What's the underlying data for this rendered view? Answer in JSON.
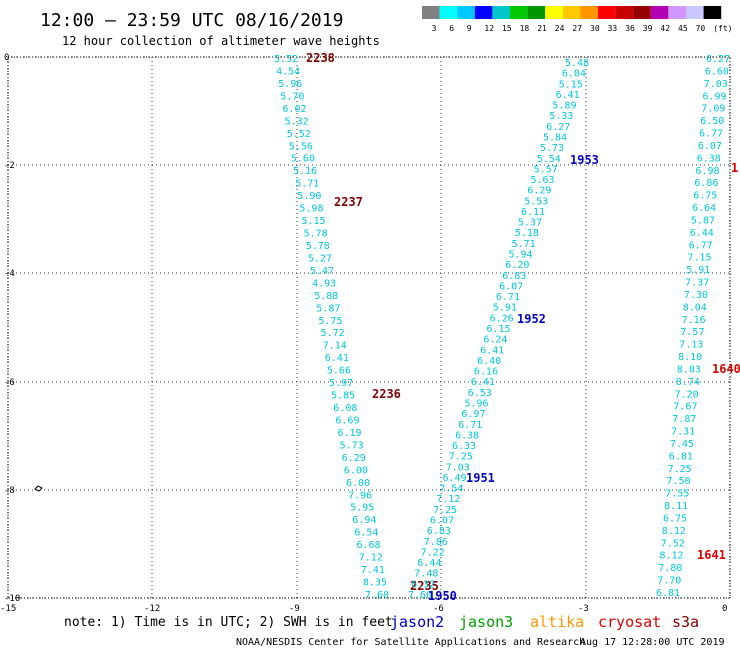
{
  "header": {
    "title": "12:00 – 23:59 UTC 08/16/2019",
    "subtitle": "12 hour collection of altimeter wave heights"
  },
  "color_scale": {
    "labels": [
      "3",
      "6",
      "9",
      "12",
      "15",
      "18",
      "21",
      "24",
      "27",
      "30",
      "33",
      "36",
      "39",
      "42",
      "45",
      "70",
      "(ft)"
    ],
    "colors": [
      "#808080",
      "#00ffff",
      "#00c8ff",
      "#0000ff",
      "#00c8c8",
      "#00c800",
      "#009600",
      "#ffff00",
      "#ffc800",
      "#ff9600",
      "#ff0000",
      "#c80000",
      "#960000",
      "#b400b4",
      "#d296ff",
      "#c8c8ff",
      "#000000"
    ]
  },
  "axes": {
    "lon_labels": [
      "-15",
      "-12",
      "-9",
      "-6",
      "-3",
      "0"
    ],
    "lat_labels": [
      "0",
      "-2",
      "-4",
      "-6",
      "-8",
      "-10"
    ]
  },
  "tracks": [
    {
      "name": "track-2238",
      "values": [
        "5.52",
        "4.54",
        "5.96",
        "5.70",
        "6.02",
        "5.32",
        "5.52",
        "5.56",
        "5.60",
        "5.16",
        "5.71",
        "5.90",
        "5.98",
        "5.15",
        "5.78",
        "5.78",
        "5.27",
        "5.47",
        "4.93",
        "5.88",
        "5.87",
        "5.75",
        "5.72",
        "7.14",
        "6.41",
        "5.66",
        "5.97",
        "5.85",
        "6.08",
        "6.69",
        "6.19",
        "5.73",
        "6.29",
        "6.00",
        "6.00",
        "7.96",
        "5.95",
        "6.94",
        "6.54",
        "6.68",
        "7.12",
        "7.41",
        "8.35",
        "7.60"
      ],
      "time_labels": [
        {
          "text": "2238",
          "color": "#800000"
        },
        {
          "text": "2237",
          "color": "#800000"
        },
        {
          "text": "2236",
          "color": "#800000"
        },
        {
          "text": "2235",
          "color": "#800000"
        }
      ]
    },
    {
      "name": "track-1953",
      "values": [
        "5.48",
        "6.04",
        "5.15",
        "6.41",
        "5.89",
        "5.33",
        "6.27",
        "5.84",
        "5.73",
        "5.54",
        "5.57",
        "5.63",
        "6.29",
        "5.53",
        "6.11",
        "5.37",
        "5.18",
        "5.71",
        "5.94",
        "6.20",
        "6.83",
        "6.07",
        "6.71",
        "5.91",
        "6.26",
        "6.15",
        "6.24",
        "6.41",
        "6.40",
        "6.16",
        "6.41",
        "6.53",
        "5.96",
        "6.97",
        "6.71",
        "6.38",
        "6.33",
        "7.25",
        "7.03",
        "6.49",
        "7.54",
        "7.12",
        "7.25",
        "6.07",
        "6.83",
        "7.86",
        "7.22",
        "6.44",
        "7.48",
        "6.32",
        "7.60"
      ],
      "time_labels": [
        {
          "text": "1953",
          "color": "#0000c8"
        },
        {
          "text": "1952",
          "color": "#0000c8"
        },
        {
          "text": "1951",
          "color": "#0000c8"
        },
        {
          "text": "1950",
          "color": "#0000c8"
        }
      ]
    },
    {
      "name": "track-1641",
      "values": [
        "6.27",
        "6.60",
        "7.03",
        "6.99",
        "7.09",
        "6.50",
        "6.77",
        "6.07",
        "6.38",
        "6.98",
        "6.86",
        "6.75",
        "6.64",
        "5.87",
        "6.44",
        "6.77",
        "7.15",
        "5.91",
        "7.37",
        "7.30",
        "8.04",
        "7.16",
        "7.57",
        "7.13",
        "8.10",
        "8.03",
        "8.74",
        "7.20",
        "7.67",
        "7.87",
        "7.31",
        "7.45",
        "6.81",
        "7.25",
        "7.50",
        "7.55",
        "8.11",
        "6.75",
        "8.12",
        "7.52",
        "8.12",
        "7.80",
        "7.70",
        "6.81"
      ],
      "time_labels": [
        {
          "text": "1",
          "color": "#dc0000"
        },
        {
          "text": "1640",
          "color": "#dc0000"
        },
        {
          "text": "1641",
          "color": "#dc0000"
        }
      ]
    }
  ],
  "note": {
    "text": "note:  1) Time is in UTC; 2) SWH is in feet",
    "satellites": [
      {
        "name": "jason2",
        "color": "#0000c8"
      },
      {
        "name": "jason3",
        "color": "#00a000"
      },
      {
        "name": "altika",
        "color": "#ff9600"
      },
      {
        "name": "cryosat",
        "color": "#dc0000"
      },
      {
        "name": "s3a",
        "color": "#800000"
      }
    ]
  },
  "footer": {
    "left": "NOAA/NESDIS Center for Satellite Applications and Research",
    "right": "Aug 17 12:28:00 UTC 2019"
  }
}
